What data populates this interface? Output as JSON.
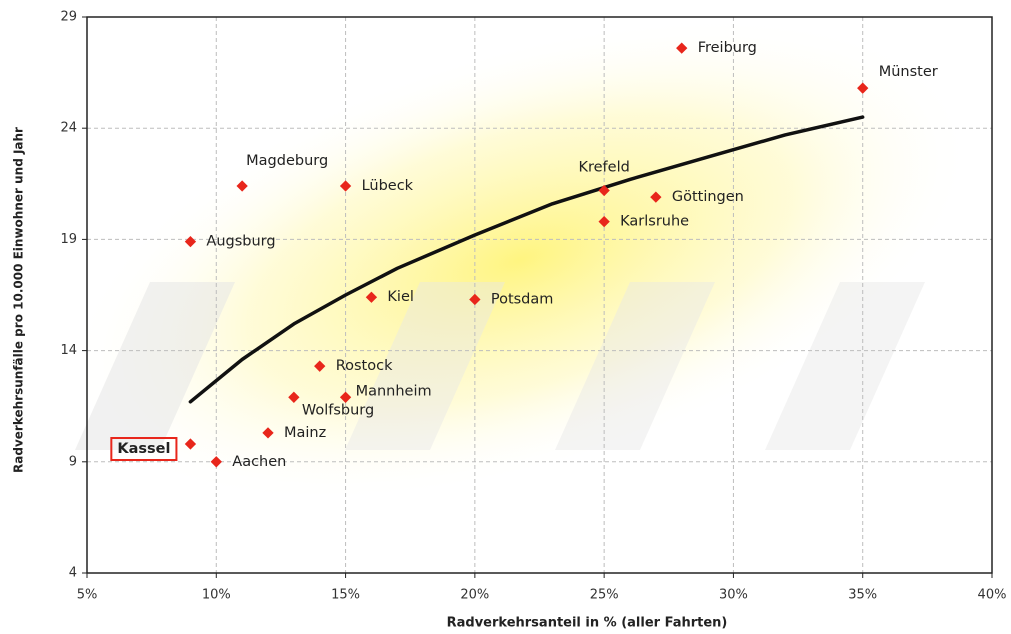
{
  "chart_data": {
    "type": "scatter",
    "x_label": "Radverkehrsanteil in % (aller Fahrten)",
    "y_label": "Radverkehrsunfälle pro 10.000 Einwohner und Jahr",
    "points": [
      {
        "name": "Freiburg",
        "x": 28,
        "y": 27.6
      },
      {
        "name": "Münster",
        "x": 35,
        "y": 25.8
      },
      {
        "name": "Krefeld",
        "x": 25,
        "y": 21.2
      },
      {
        "name": "Göttingen",
        "x": 27,
        "y": 20.9
      },
      {
        "name": "Karlsruhe",
        "x": 25,
        "y": 19.8
      },
      {
        "name": "Magdeburg",
        "x": 11,
        "y": 21.4
      },
      {
        "name": "Lübeck",
        "x": 15,
        "y": 21.4
      },
      {
        "name": "Augsburg",
        "x": 9,
        "y": 18.9
      },
      {
        "name": "Kiel",
        "x": 16,
        "y": 16.4
      },
      {
        "name": "Potsdam",
        "x": 20,
        "y": 16.3
      },
      {
        "name": "Rostock",
        "x": 14,
        "y": 13.3
      },
      {
        "name": "Mannheim",
        "x": 15,
        "y": 11.9
      },
      {
        "name": "Wolfsburg",
        "x": 13,
        "y": 11.9
      },
      {
        "name": "Mainz",
        "x": 12,
        "y": 10.3
      },
      {
        "name": "Kassel",
        "x": 9,
        "y": 9.8
      },
      {
        "name": "Aachen",
        "x": 10,
        "y": 9.0
      }
    ],
    "color": "#e8261b",
    "trend": {
      "color": "#111111",
      "x": [
        9,
        11,
        13,
        15,
        17,
        20,
        23,
        26,
        29,
        32,
        35
      ],
      "values": [
        11.7,
        13.6,
        15.2,
        16.5,
        17.7,
        19.2,
        20.6,
        21.7,
        22.7,
        23.7,
        24.5
      ]
    },
    "xlim": [
      5,
      40
    ],
    "xticks": [
      {
        "value": 5,
        "label": "5%"
      },
      {
        "value": 10,
        "label": "10%"
      },
      {
        "value": 15,
        "label": "15%"
      },
      {
        "value": 20,
        "label": "20%"
      },
      {
        "value": 25,
        "label": "25%"
      },
      {
        "value": 30,
        "label": "30%"
      },
      {
        "value": 35,
        "label": "35%"
      },
      {
        "value": 40,
        "label": "40%"
      }
    ],
    "ylim": [
      4,
      29
    ],
    "yticks": [
      4,
      9,
      14,
      19,
      24,
      29
    ],
    "grid": true
  }
}
